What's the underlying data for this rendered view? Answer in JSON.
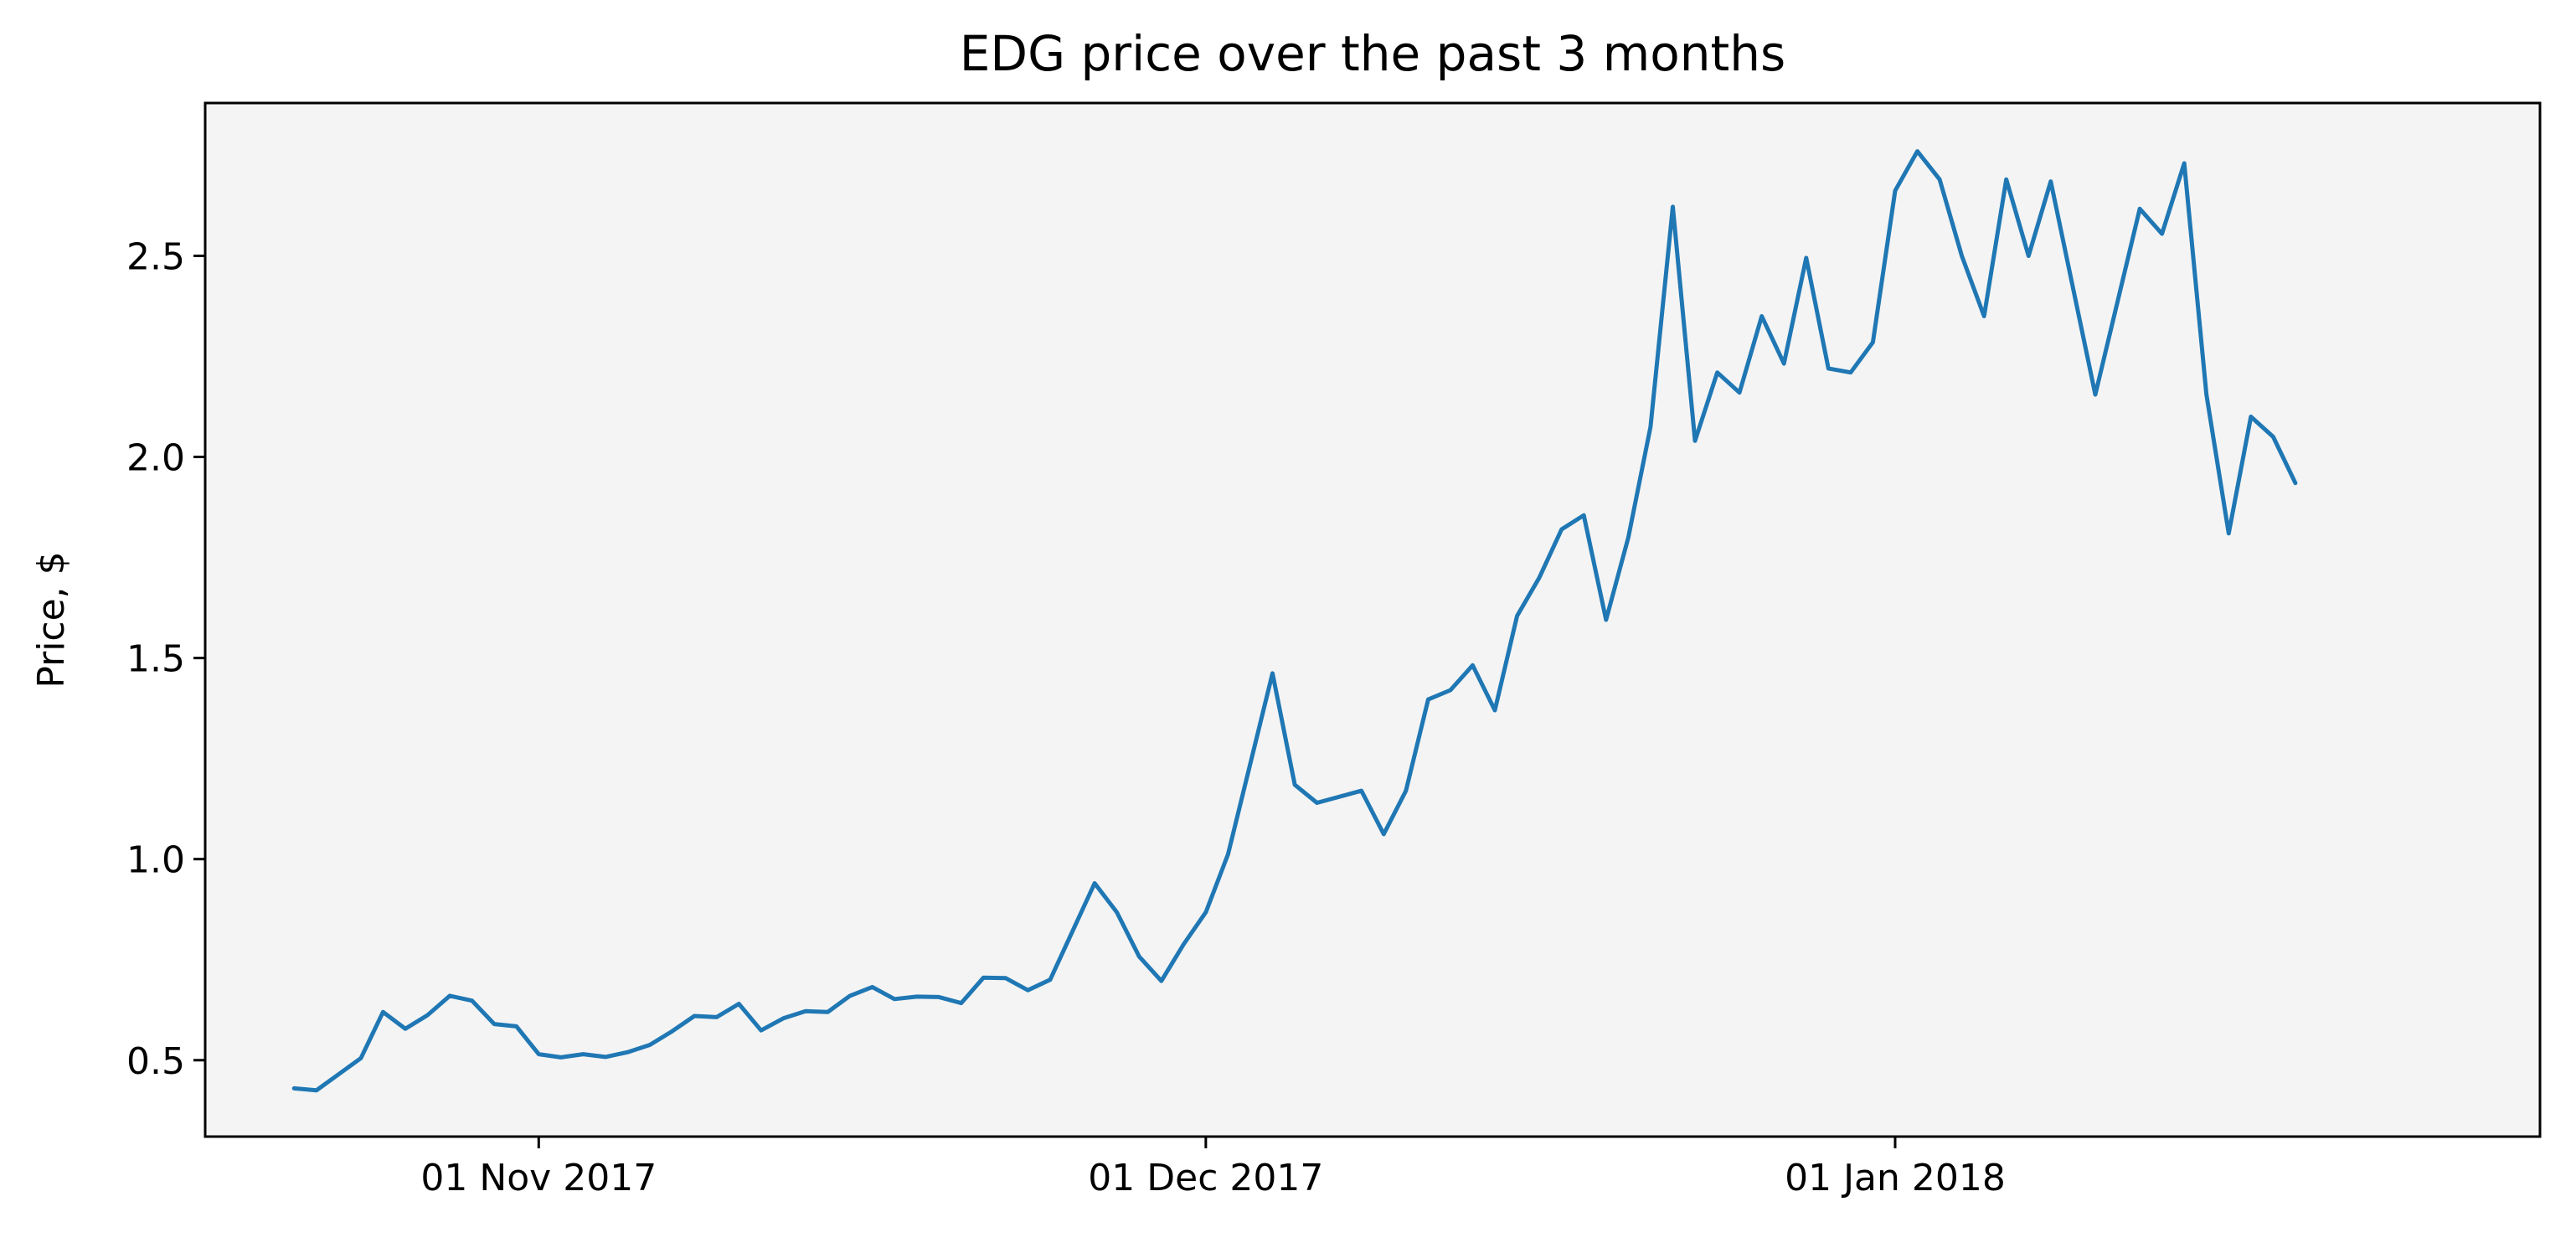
{
  "chart_data": {
    "type": "line",
    "title": "EDG price over the past 3 months",
    "xlabel": "",
    "ylabel": "Price, $",
    "xlim": [
      "2017-10-17",
      "2018-01-30"
    ],
    "ylim": [
      0.31,
      2.88
    ],
    "grid": false,
    "legend": "none",
    "x_ticks": [
      {
        "date": "2017-11-01",
        "label": "01 Nov 2017"
      },
      {
        "date": "2017-12-01",
        "label": "01 Dec 2017"
      },
      {
        "date": "2018-01-01",
        "label": "01 Jan 2018"
      }
    ],
    "y_ticks": [
      {
        "value": 0.5,
        "label": "0.5"
      },
      {
        "value": 1.0,
        "label": "1.0"
      },
      {
        "value": 1.5,
        "label": "1.5"
      },
      {
        "value": 2.0,
        "label": "2.0"
      },
      {
        "value": 2.5,
        "label": "2.5"
      }
    ],
    "colors": {
      "line": "#1f77b4",
      "plot_bg": "#f4f4f4",
      "axes": "#000000"
    },
    "series": [
      {
        "points": [
          [
            "2017-10-21",
            0.43
          ],
          [
            "2017-10-22",
            0.425
          ],
          [
            "2017-10-23",
            0.465
          ],
          [
            "2017-10-24",
            0.505
          ],
          [
            "2017-10-25",
            0.62
          ],
          [
            "2017-10-26",
            0.578
          ],
          [
            "2017-10-27",
            0.612
          ],
          [
            "2017-10-28",
            0.66
          ],
          [
            "2017-10-29",
            0.648
          ],
          [
            "2017-10-30",
            0.59
          ],
          [
            "2017-10-31",
            0.584
          ],
          [
            "2017-11-01",
            0.515
          ],
          [
            "2017-11-02",
            0.507
          ],
          [
            "2017-11-03",
            0.515
          ],
          [
            "2017-11-04",
            0.508
          ],
          [
            "2017-11-05",
            0.52
          ],
          [
            "2017-11-06",
            0.538
          ],
          [
            "2017-11-07",
            0.572
          ],
          [
            "2017-11-08",
            0.61
          ],
          [
            "2017-11-09",
            0.607
          ],
          [
            "2017-11-10",
            0.64
          ],
          [
            "2017-11-11",
            0.574
          ],
          [
            "2017-11-12",
            0.604
          ],
          [
            "2017-11-13",
            0.622
          ],
          [
            "2017-11-14",
            0.62
          ],
          [
            "2017-11-15",
            0.66
          ],
          [
            "2017-11-16",
            0.682
          ],
          [
            "2017-11-17",
            0.652
          ],
          [
            "2017-11-18",
            0.658
          ],
          [
            "2017-11-19",
            0.657
          ],
          [
            "2017-11-20",
            0.642
          ],
          [
            "2017-11-21",
            0.705
          ],
          [
            "2017-11-22",
            0.704
          ],
          [
            "2017-11-23",
            0.674
          ],
          [
            "2017-11-24",
            0.7
          ],
          [
            "2017-11-26",
            0.94
          ],
          [
            "2017-11-27",
            0.868
          ],
          [
            "2017-11-28",
            0.758
          ],
          [
            "2017-11-29",
            0.697
          ],
          [
            "2017-11-30",
            0.788
          ],
          [
            "2017-12-01",
            0.868
          ],
          [
            "2017-12-02",
            1.012
          ],
          [
            "2017-12-04",
            1.462
          ],
          [
            "2017-12-05",
            1.185
          ],
          [
            "2017-12-06",
            1.14
          ],
          [
            "2017-12-08",
            1.17
          ],
          [
            "2017-12-09",
            1.062
          ],
          [
            "2017-12-10",
            1.17
          ],
          [
            "2017-12-11",
            1.397
          ],
          [
            "2017-12-12",
            1.42
          ],
          [
            "2017-12-13",
            1.482
          ],
          [
            "2017-12-14",
            1.37
          ],
          [
            "2017-12-15",
            1.605
          ],
          [
            "2017-12-16",
            1.7
          ],
          [
            "2017-12-17",
            1.82
          ],
          [
            "2017-12-18",
            1.855
          ],
          [
            "2017-12-19",
            1.595
          ],
          [
            "2017-12-20",
            1.8
          ],
          [
            "2017-12-21",
            2.075
          ],
          [
            "2017-12-22",
            2.622
          ],
          [
            "2017-12-23",
            2.04
          ],
          [
            "2017-12-24",
            2.21
          ],
          [
            "2017-12-25",
            2.16
          ],
          [
            "2017-12-26",
            2.35
          ],
          [
            "2017-12-27",
            2.232
          ],
          [
            "2017-12-28",
            2.495
          ],
          [
            "2017-12-29",
            2.22
          ],
          [
            "2017-12-30",
            2.21
          ],
          [
            "2017-12-31",
            2.285
          ],
          [
            "2018-01-01",
            2.662
          ],
          [
            "2018-01-02",
            2.76
          ],
          [
            "2018-01-03",
            2.69
          ],
          [
            "2018-01-04",
            2.5
          ],
          [
            "2018-01-05",
            2.35
          ],
          [
            "2018-01-06",
            2.69
          ],
          [
            "2018-01-07",
            2.5
          ],
          [
            "2018-01-08",
            2.685
          ],
          [
            "2018-01-10",
            2.155
          ],
          [
            "2018-01-12",
            2.617
          ],
          [
            "2018-01-13",
            2.555
          ],
          [
            "2018-01-14",
            2.73
          ],
          [
            "2018-01-15",
            2.155
          ],
          [
            "2018-01-16",
            1.81
          ],
          [
            "2018-01-17",
            2.1
          ],
          [
            "2018-01-18",
            2.05
          ],
          [
            "2018-01-19",
            1.935
          ]
        ]
      }
    ]
  }
}
